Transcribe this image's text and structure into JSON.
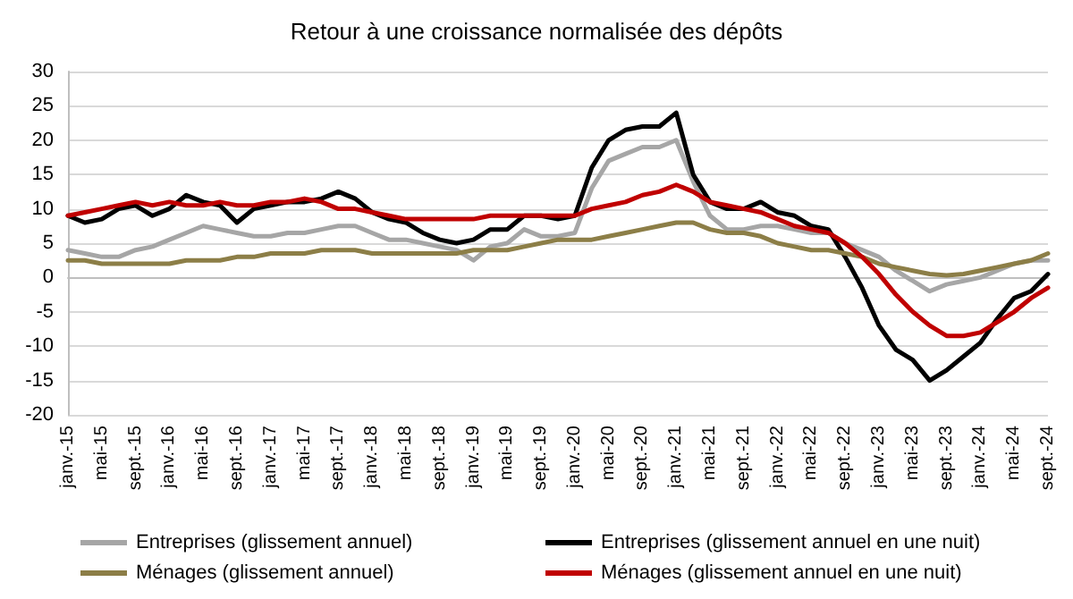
{
  "chart_data": {
    "type": "line",
    "title": "Retour à une croissance normalisée des dépôts",
    "categories": [
      "janv.-15",
      null,
      "mai-15",
      null,
      "sept.-15",
      null,
      "janv.-16",
      null,
      "mai-16",
      null,
      "sept.-16",
      null,
      "janv.-17",
      null,
      "mai-17",
      null,
      "sept.-17",
      null,
      "janv.-18",
      null,
      "mai-18",
      null,
      "sept.-18",
      null,
      "janv.-19",
      null,
      "mai-19",
      null,
      "sept.-19",
      null,
      "janv.-20",
      null,
      "mai-20",
      null,
      "sept.-20",
      null,
      "janv.-21",
      null,
      "mai-21",
      null,
      "sept.-21",
      null,
      "janv.-22",
      null,
      "mai-22",
      null,
      "sept.-22",
      null,
      "janv.-23",
      null,
      "mai-23",
      null,
      "sept.-23",
      null,
      "janv.-24",
      null,
      "mai-24",
      null,
      "sept.-24"
    ],
    "series": [
      {
        "name": "Entreprises (glissement annuel)",
        "color": "#a6a6a6",
        "values": [
          4,
          3.5,
          3,
          3,
          4,
          4.5,
          5.5,
          6.5,
          7.5,
          7,
          6.5,
          6,
          6,
          6.5,
          6.5,
          7,
          7.5,
          7.5,
          6.5,
          5.5,
          5.5,
          5,
          4.5,
          4,
          2.5,
          4.5,
          5,
          7,
          6,
          6,
          6.5,
          13,
          17,
          18,
          19,
          19,
          20,
          14,
          9,
          7,
          7,
          7.5,
          7.5,
          7,
          6.5,
          6.5,
          5,
          4,
          3,
          1,
          -0.5,
          -2,
          -1,
          -0.5,
          0,
          1,
          2,
          2.5,
          2.5
        ]
      },
      {
        "name": "Entreprises (glissement annuel en une nuit)",
        "color": "#000000",
        "values": [
          9,
          8,
          8.5,
          10,
          10.5,
          9,
          10,
          12,
          11,
          10.5,
          8,
          10,
          10.5,
          11,
          11,
          11.5,
          12.5,
          11.5,
          9.5,
          8.5,
          8,
          6.5,
          5.5,
          5,
          5.5,
          7,
          7,
          9,
          9,
          8.5,
          9,
          16,
          20,
          21.5,
          22,
          22,
          24,
          15,
          11,
          10,
          10,
          11,
          9.5,
          9,
          7.5,
          7,
          3,
          -1.5,
          -7,
          -10.5,
          -12,
          -15,
          -13.5,
          -11.5,
          -9.5,
          -6,
          -3,
          -2,
          0.5
        ]
      },
      {
        "name": "Ménages (glissement annuel)",
        "color": "#8c7e47",
        "values": [
          2.5,
          2.5,
          2,
          2,
          2,
          2,
          2,
          2.5,
          2.5,
          2.5,
          3,
          3,
          3.5,
          3.5,
          3.5,
          4,
          4,
          4,
          3.5,
          3.5,
          3.5,
          3.5,
          3.5,
          3.5,
          4,
          4,
          4,
          4.5,
          5,
          5.5,
          5.5,
          5.5,
          6,
          6.5,
          7,
          7.5,
          8,
          8,
          7,
          6.5,
          6.5,
          6,
          5,
          4.5,
          4,
          4,
          3.5,
          3,
          2,
          1.5,
          1,
          0.5,
          0.3,
          0.5,
          1,
          1.5,
          2,
          2.5,
          3.5
        ]
      },
      {
        "name": "Ménages (glissement annuel en une nuit)",
        "color": "#c00000",
        "values": [
          9,
          9.5,
          10,
          10.5,
          11,
          10.5,
          11,
          10.5,
          10.5,
          11,
          10.5,
          10.5,
          11,
          11,
          11.5,
          11,
          10,
          10,
          9.5,
          9,
          8.5,
          8.5,
          8.5,
          8.5,
          8.5,
          9,
          9,
          9,
          9,
          9,
          9,
          10,
          10.5,
          11,
          12,
          12.5,
          13.5,
          12.5,
          11,
          10.5,
          10,
          9.5,
          8.5,
          7.5,
          7,
          6.5,
          5,
          3,
          0.5,
          -2.5,
          -5,
          -7,
          -8.5,
          -8.5,
          -8,
          -6.5,
          -5,
          -3,
          -1.5
        ]
      }
    ],
    "ylim": [
      -20,
      30
    ],
    "yticks": [
      -20,
      -15,
      -10,
      -5,
      0,
      5,
      10,
      15,
      20,
      25,
      30
    ],
    "grid": "y",
    "legend": "bottom",
    "marker": "none",
    "line_style": "solid"
  }
}
